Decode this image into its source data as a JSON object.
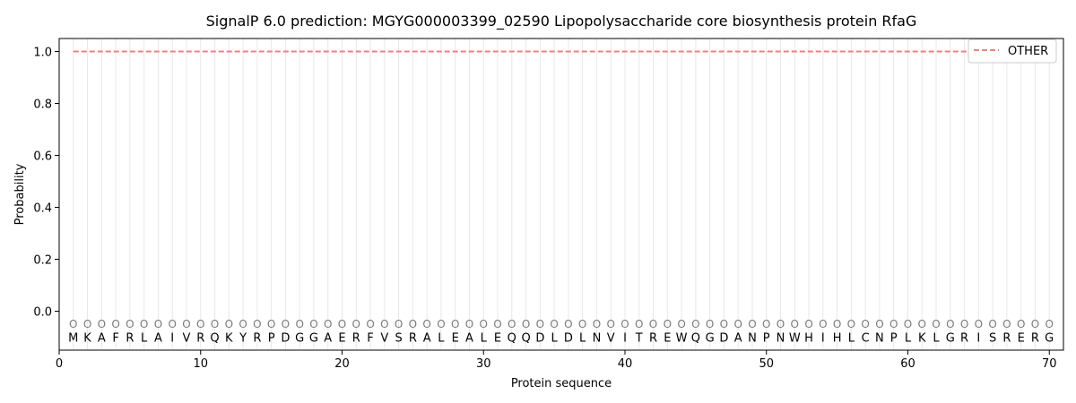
{
  "chart_data": {
    "type": "line",
    "title": "SignalP 6.0 prediction: MGYG000003399_02590 Lipopolysaccharide core biosynthesis protein RfaG",
    "xlabel": "Protein sequence",
    "ylabel": "Probability",
    "xlim": [
      0,
      71
    ],
    "ylim": [
      -0.15,
      1.05
    ],
    "xticks": [
      0,
      10,
      20,
      30,
      40,
      50,
      60,
      70
    ],
    "yticks": [
      0.0,
      0.2,
      0.4,
      0.6,
      0.8,
      1.0
    ],
    "sequence": [
      "M",
      "K",
      "A",
      "F",
      "R",
      "L",
      "A",
      "I",
      "V",
      "R",
      "Q",
      "K",
      "Y",
      "R",
      "P",
      "D",
      "G",
      "G",
      "A",
      "E",
      "R",
      "F",
      "V",
      "S",
      "R",
      "A",
      "L",
      "E",
      "A",
      "L",
      "E",
      "Q",
      "Q",
      "D",
      "L",
      "D",
      "L",
      "N",
      "V",
      "I",
      "T",
      "R",
      "E",
      "W",
      "Q",
      "G",
      "D",
      "A",
      "N",
      "P",
      "N",
      "W",
      "H",
      "I",
      "H",
      "L",
      "C",
      "N",
      "P",
      "L",
      "K",
      "L",
      "G",
      "R",
      "I",
      "S",
      "R",
      "E",
      "R",
      "G"
    ],
    "region_labels": [
      "O",
      "O",
      "O",
      "O",
      "O",
      "O",
      "O",
      "O",
      "O",
      "O",
      "O",
      "O",
      "O",
      "O",
      "O",
      "O",
      "O",
      "O",
      "O",
      "O",
      "O",
      "O",
      "O",
      "O",
      "O",
      "O",
      "O",
      "O",
      "O",
      "O",
      "O",
      "O",
      "O",
      "O",
      "O",
      "O",
      "O",
      "O",
      "O",
      "O",
      "O",
      "O",
      "O",
      "O",
      "O",
      "O",
      "O",
      "O",
      "O",
      "O",
      "O",
      "O",
      "O",
      "O",
      "O",
      "O",
      "O",
      "O",
      "O",
      "O",
      "O",
      "O",
      "O",
      "O",
      "O",
      "O",
      "O",
      "O",
      "O",
      "O"
    ],
    "series": [
      {
        "name": "OTHER",
        "color": "#f08080",
        "style": "dashed",
        "x": [
          1,
          70
        ],
        "values": [
          1.0,
          1.0
        ]
      }
    ],
    "legend": "top-right",
    "grid": "vertical lines at each residue"
  }
}
